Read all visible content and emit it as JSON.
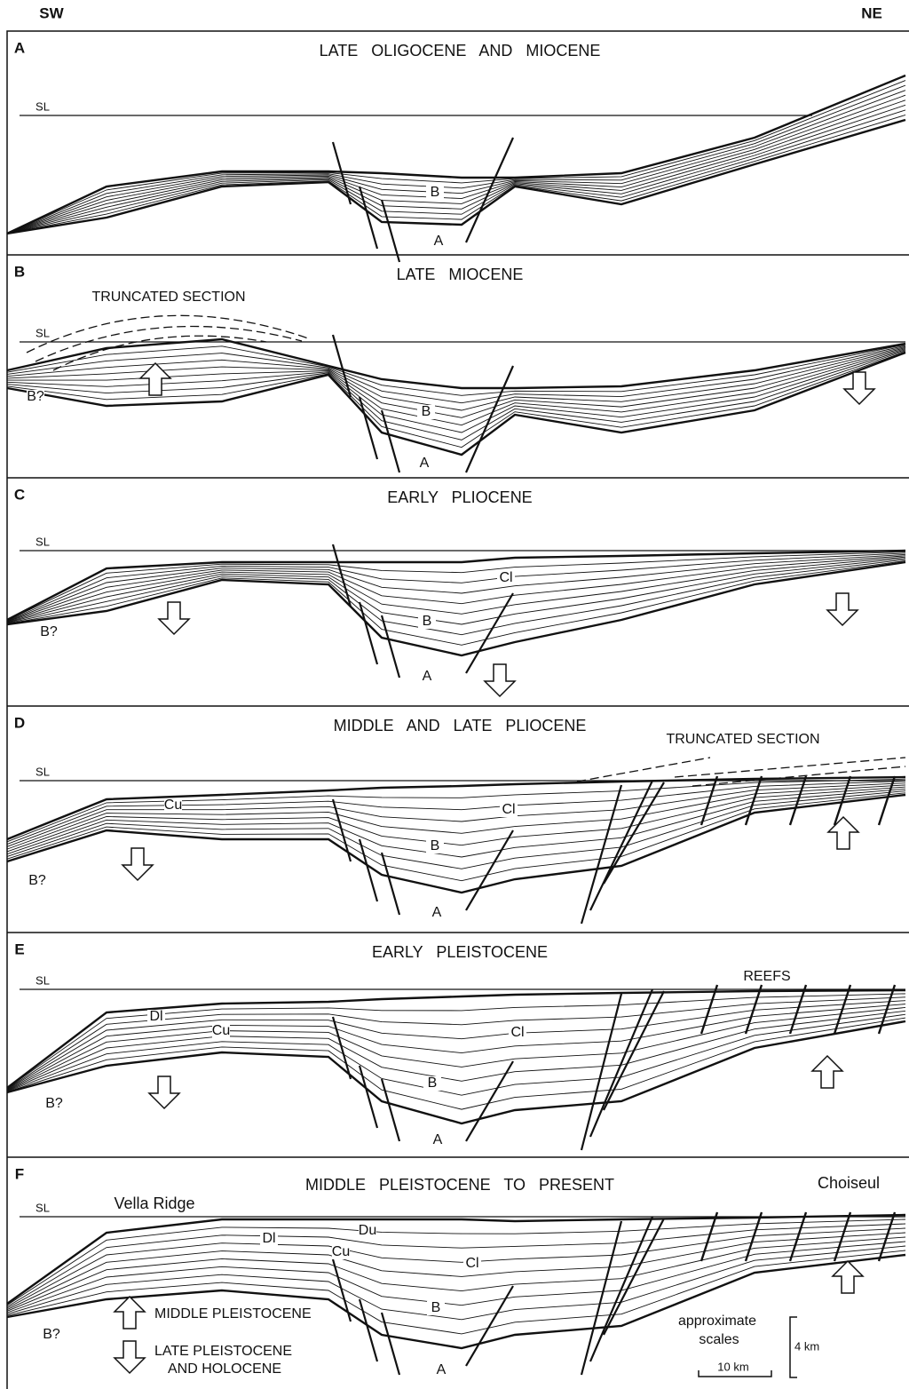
{
  "header": {
    "left": "SW",
    "right": "NE"
  },
  "panels": [
    {
      "letter": "A",
      "title": "LATE OLIGOCENE AND MIOCENE",
      "sea_level": "SL",
      "labels": [
        "B",
        "A"
      ]
    },
    {
      "letter": "B",
      "title": "LATE MIOCENE",
      "annotation": "TRUNCATED SECTION",
      "sea_level": "SL",
      "labels": [
        "B?",
        "B",
        "A"
      ]
    },
    {
      "letter": "C",
      "title": "EARLY PLIOCENE",
      "sea_level": "SL",
      "labels": [
        "Cl",
        "B?",
        "B",
        "A"
      ]
    },
    {
      "letter": "D",
      "title": "MIDDLE AND LATE PLIOCENE",
      "annotation": "TRUNCATED SECTION",
      "sea_level": "SL",
      "labels": [
        "Cu",
        "Cl",
        "B",
        "B?",
        "A"
      ]
    },
    {
      "letter": "E",
      "title": "EARLY PLEISTOCENE",
      "annotation": "REEFS",
      "sea_level": "SL",
      "labels": [
        "Dl",
        "Cu",
        "Cl",
        "B",
        "B?",
        "A"
      ]
    },
    {
      "letter": "F",
      "title": "MIDDLE PLEISTOCENE TO PRESENT",
      "sea_level": "SL",
      "places": [
        "Vella Ridge",
        "Choiseul"
      ],
      "labels": [
        "Du",
        "Dl",
        "Cu",
        "Cl",
        "B",
        "B?",
        "A"
      ]
    }
  ],
  "legend": {
    "uplift": "MIDDLE PLEISTOCENE",
    "subsidence": [
      "LATE PLEISTOCENE",
      "AND HOLOCENE"
    ]
  },
  "scale": {
    "caption": [
      "approximate",
      "scales"
    ],
    "vertical": "4 km",
    "horizontal": "10 km"
  }
}
